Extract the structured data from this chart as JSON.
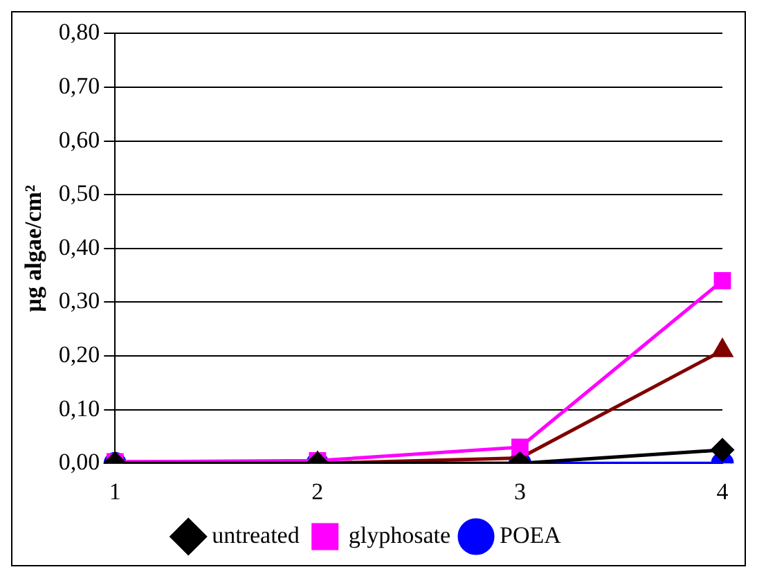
{
  "chart_data": {
    "type": "line",
    "ylabel": "µg algae/cm²",
    "categories": [
      "1",
      "2",
      "3",
      "4"
    ],
    "series": [
      {
        "name": "untreated",
        "color": "#000000",
        "marker": "diamond",
        "values": [
          0,
          0,
          0,
          0.025
        ]
      },
      {
        "name": "glyphosate",
        "color": "#ff00ff",
        "marker": "square",
        "values": [
          0.003,
          0.005,
          0.03,
          0.34
        ]
      },
      {
        "color": "#800000",
        "marker": "triangle",
        "values": [
          0,
          0,
          0.01,
          0.21
        ]
      },
      {
        "name": "POEA",
        "color": "#0000ff",
        "marker": "circle",
        "values": [
          0,
          0,
          0,
          0
        ]
      }
    ],
    "ylim": [
      0,
      0.8
    ],
    "yticks": [
      {
        "value": 0,
        "label": "0,00"
      },
      {
        "value": 0.1,
        "label": "0,10"
      },
      {
        "value": 0.2,
        "label": "0,20"
      },
      {
        "value": 0.3,
        "label": "0,30"
      },
      {
        "value": 0.4,
        "label": "0,40"
      },
      {
        "value": 0.5,
        "label": "0,50"
      },
      {
        "value": 0.6,
        "label": "0,60"
      },
      {
        "value": 0.7,
        "label": "0,70"
      },
      {
        "value": 0.8,
        "label": "0,80"
      }
    ],
    "grid": "y",
    "legend": "bottom"
  }
}
